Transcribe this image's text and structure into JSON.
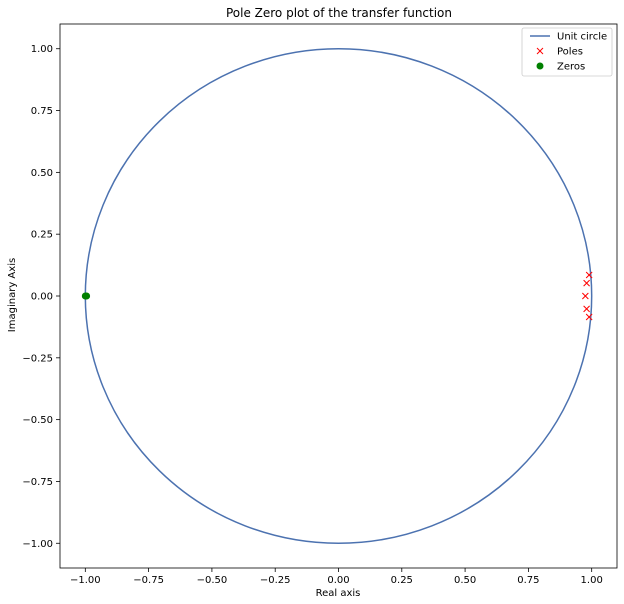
{
  "chart_data": {
    "type": "scatter",
    "title": "Pole Zero plot of the transfer function",
    "xlabel": "Real axis",
    "ylabel": "Imaginary Axis",
    "xlim": [
      -1.1,
      1.1
    ],
    "ylim": [
      -1.1,
      1.1
    ],
    "xticks": [
      -1.0,
      -0.75,
      -0.5,
      -0.25,
      0.0,
      0.25,
      0.5,
      0.75,
      1.0
    ],
    "xtick_labels": [
      "−1.00",
      "−0.75",
      "−0.50",
      "−0.25",
      "0.00",
      "0.25",
      "0.50",
      "0.75",
      "1.00"
    ],
    "yticks": [
      1.0,
      0.75,
      0.5,
      0.25,
      0.0,
      -0.25,
      -0.5,
      -0.75,
      -1.0
    ],
    "ytick_labels": [
      "1.00",
      "0.75",
      "0.50",
      "0.25",
      "0.00",
      "−0.25",
      "−0.50",
      "−0.75",
      "−1.00"
    ],
    "grid": false,
    "legend_position": "top-right",
    "series": [
      {
        "name": "Unit circle",
        "kind": "line",
        "color": "#4c72b0",
        "shape": "circle",
        "center": [
          0,
          0
        ],
        "radius": 1.0
      },
      {
        "name": "Poles",
        "kind": "marker",
        "marker": "x",
        "color": "#ff0000",
        "points": [
          [
            0.99,
            0.085
          ],
          [
            0.98,
            0.052
          ],
          [
            0.975,
            0.0
          ],
          [
            0.98,
            -0.052
          ],
          [
            0.99,
            -0.085
          ]
        ]
      },
      {
        "name": "Zeros",
        "kind": "marker",
        "marker": "o",
        "color": "#008000",
        "points": [
          [
            -1.0,
            0.0
          ],
          [
            -0.995,
            0.0
          ]
        ]
      }
    ]
  }
}
